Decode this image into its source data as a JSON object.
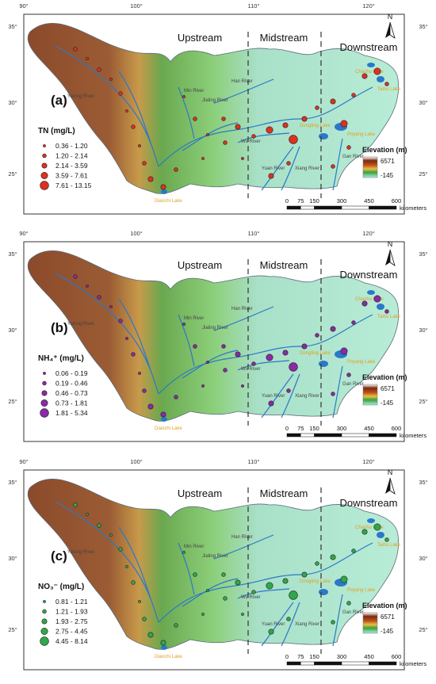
{
  "figure": {
    "panels": [
      {
        "letter": "(a)",
        "legend_title": "TN (mg/L)",
        "legend_items": [
          "0.36 - 1.20",
          "1.20 - 2.14",
          "2.14 - 3.59",
          "3.59 - 7.61",
          "7.61 - 13.15"
        ],
        "symbol_color": "#e03020"
      },
      {
        "letter": "(b)",
        "legend_title": "NH₄⁺ (mg/L)",
        "legend_items": [
          "0.06 - 0.19",
          "0.19 - 0.46",
          "0.46 - 0.73",
          "0.73 - 1.81",
          "1.81 - 5.34"
        ],
        "symbol_color": "#8a2aa6"
      },
      {
        "letter": "(c)",
        "legend_title": "NO₃⁻ (mg/L)",
        "legend_items": [
          "0.81 - 1.21",
          "1.21 - 1.93",
          "1.93 - 2.75",
          "2.75 - 4.45",
          "4.45 - 8.14"
        ],
        "symbol_color": "#2fa84a"
      }
    ],
    "lon_ticks": [
      "90°",
      "100°",
      "110°",
      "120°"
    ],
    "lat_ticks": [
      "35°",
      "30°",
      "25°"
    ],
    "regions": [
      "Upstream",
      "Midstream",
      "Downstream"
    ],
    "north_label": "N",
    "elevation": {
      "title": "Elevation (m)",
      "max": "6571",
      "min": "-145"
    },
    "scale": {
      "ticks": [
        "0",
        "75",
        "150",
        "300",
        "450",
        "600"
      ],
      "unit": "kilometers"
    },
    "rivers": [
      "Yalong River",
      "Min River",
      "Jialing River",
      "Han River",
      "Wu River",
      "Yuan River",
      "Xiang River",
      "Gan River"
    ],
    "lakes": [
      "Dianchi Lake",
      "Dongting Lake",
      "Poyang Lake",
      "Chaohu Lake",
      "Taihu Lake"
    ],
    "colors": {
      "high": "#8b4a2b",
      "mid": "#6aa84f",
      "low": "#a8e0c8",
      "water": "#2a78c8",
      "lake_label": "#e0a020"
    }
  }
}
